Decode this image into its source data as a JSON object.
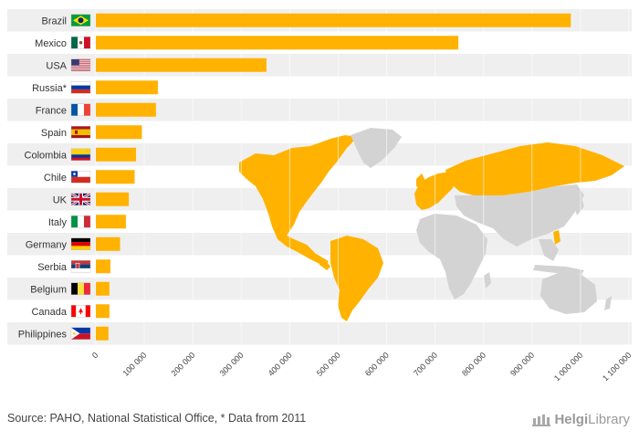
{
  "chart_data": {
    "type": "bar",
    "orientation": "horizontal",
    "categories": [
      "Brazil",
      "Mexico",
      "USA",
      "Russia*",
      "France",
      "Spain",
      "Colombia",
      "Chile",
      "UK",
      "Italy",
      "Germany",
      "Serbia",
      "Belgium",
      "Canada",
      "Philippines"
    ],
    "values": [
      980000,
      748000,
      352000,
      128000,
      124000,
      95000,
      83000,
      80000,
      68000,
      62000,
      50000,
      30000,
      28000,
      28000,
      26000
    ],
    "xticks": [
      "0",
      "100 000",
      "200 000",
      "300 000",
      "400 000",
      "500 000",
      "600 000",
      "700 000",
      "800 000",
      "900 000",
      "1 000 000",
      "1 100 000"
    ],
    "xlim": [
      0,
      1100000
    ],
    "grid": true,
    "colors": {
      "bar": "#FFB200",
      "band": "#EFEFEF",
      "map_highlight": "#FFB200",
      "map_base": "#D3D3D3"
    }
  },
  "flags": [
    {
      "country": "Brazil",
      "icon": "brazil-flag-icon",
      "colors": [
        "#009C3B",
        "#FFDF00",
        "#002776"
      ]
    },
    {
      "country": "Mexico",
      "icon": "mexico-flag-icon",
      "colors": [
        "#006847",
        "#FFFFFF",
        "#CE1126"
      ]
    },
    {
      "country": "USA",
      "icon": "usa-flag-icon",
      "colors": [
        "#B22234",
        "#FFFFFF",
        "#3C3B6E"
      ]
    },
    {
      "country": "Russia*",
      "icon": "russia-flag-icon",
      "colors": [
        "#FFFFFF",
        "#0039A6",
        "#D52B1E"
      ]
    },
    {
      "country": "France",
      "icon": "france-flag-icon",
      "colors": [
        "#0055A4",
        "#FFFFFF",
        "#EF4135"
      ]
    },
    {
      "country": "Spain",
      "icon": "spain-flag-icon",
      "colors": [
        "#AA151B",
        "#F1BF00",
        "#AA151B"
      ]
    },
    {
      "country": "Colombia",
      "icon": "colombia-flag-icon",
      "colors": [
        "#FCD116",
        "#003893",
        "#CE1126"
      ]
    },
    {
      "country": "Chile",
      "icon": "chile-flag-icon",
      "colors": [
        "#FFFFFF",
        "#D52B1E",
        "#0039A6"
      ]
    },
    {
      "country": "UK",
      "icon": "uk-flag-icon",
      "colors": [
        "#012169",
        "#FFFFFF",
        "#C8102E"
      ]
    },
    {
      "country": "Italy",
      "icon": "italy-flag-icon",
      "colors": [
        "#009246",
        "#FFFFFF",
        "#CE2B37"
      ]
    },
    {
      "country": "Germany",
      "icon": "germany-flag-icon",
      "colors": [
        "#000000",
        "#DD0000",
        "#FFCE00"
      ]
    },
    {
      "country": "Serbia",
      "icon": "serbia-flag-icon",
      "colors": [
        "#C6363C",
        "#0C4076",
        "#FFFFFF"
      ]
    },
    {
      "country": "Belgium",
      "icon": "belgium-flag-icon",
      "colors": [
        "#000000",
        "#FAE042",
        "#ED2939"
      ]
    },
    {
      "country": "Canada",
      "icon": "canada-flag-icon",
      "colors": [
        "#FF0000",
        "#FFFFFF",
        "#FF0000"
      ]
    },
    {
      "country": "Philippines",
      "icon": "philippines-flag-icon",
      "colors": [
        "#0038A8",
        "#CE1126",
        "#FFFFFF"
      ]
    }
  ],
  "footer": {
    "source": "Source: PAHO, National Statistical Office, * Data from 2011",
    "brand_helgi": "Helgi",
    "brand_library": "Library",
    "brand_icon": "helgi-library-logo-icon"
  }
}
